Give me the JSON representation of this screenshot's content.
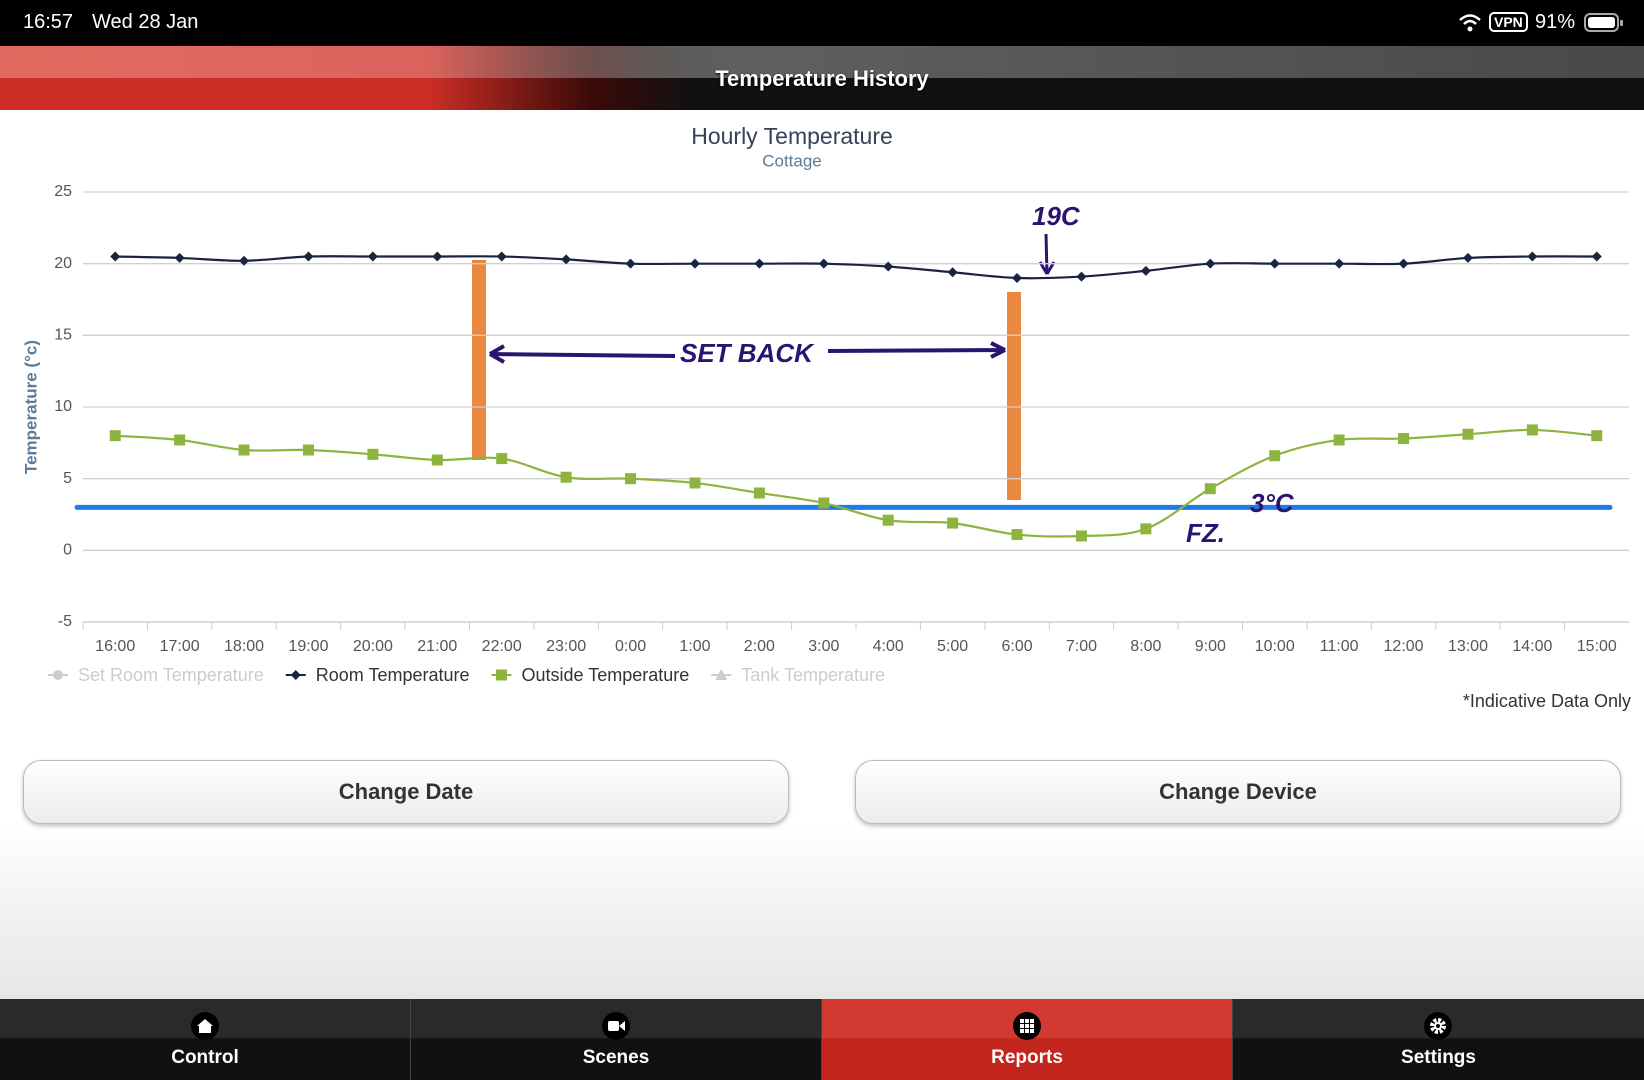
{
  "status_bar": {
    "time": "16:57",
    "date": "Wed 28 Jan",
    "vpn": "VPN",
    "battery": "91%"
  },
  "header": {
    "title": "Temperature History"
  },
  "chart_data": {
    "type": "line",
    "title": "Hourly Temperature",
    "subtitle": "Cottage",
    "y_label": "Temperature (°c)",
    "categories": [
      "16:00",
      "17:00",
      "18:00",
      "19:00",
      "20:00",
      "21:00",
      "22:00",
      "23:00",
      "0:00",
      "1:00",
      "2:00",
      "3:00",
      "4:00",
      "5:00",
      "6:00",
      "7:00",
      "8:00",
      "9:00",
      "10:00",
      "11:00",
      "12:00",
      "13:00",
      "14:00",
      "15:00"
    ],
    "ylim": [
      -5,
      25
    ],
    "yticks": [
      -5,
      0,
      5,
      10,
      15,
      20,
      25
    ],
    "grid": true,
    "series": [
      {
        "name": "Set Room Temperature",
        "marker": "circle",
        "visible": false,
        "values": [
          null,
          null,
          null,
          null,
          null,
          null,
          null,
          null,
          null,
          null,
          null,
          null,
          null,
          null,
          null,
          null,
          null,
          null,
          null,
          null,
          null,
          null,
          null,
          null
        ]
      },
      {
        "name": "Room Temperature",
        "color": "#1a2340",
        "marker": "diamond",
        "visible": true,
        "values": [
          20.5,
          20.4,
          20.2,
          20.5,
          20.5,
          20.5,
          20.5,
          20.3,
          20.0,
          20.0,
          20.0,
          20.0,
          19.8,
          19.4,
          19.0,
          19.1,
          19.5,
          20.0,
          20.0,
          20.0,
          20.0,
          20.4,
          20.5,
          20.5
        ]
      },
      {
        "name": "Outside Temperature",
        "color": "#8db43e",
        "marker": "square",
        "visible": true,
        "values": [
          8.0,
          7.7,
          7.0,
          7.0,
          6.7,
          6.3,
          6.4,
          5.1,
          5.0,
          4.7,
          4.0,
          3.3,
          2.1,
          1.9,
          1.1,
          1.0,
          1.5,
          4.3,
          6.6,
          7.7,
          7.8,
          8.1,
          8.4,
          8.0
        ]
      },
      {
        "name": "Tank Temperature",
        "marker": "triangle",
        "visible": false,
        "values": [
          null,
          null,
          null,
          null,
          null,
          null,
          null,
          null,
          null,
          null,
          null,
          null,
          null,
          null,
          null,
          null,
          null,
          null,
          null,
          null,
          null,
          null,
          null,
          null
        ]
      }
    ],
    "reference_line": {
      "value": 3,
      "label": "3°C",
      "color": "#1e7be8"
    },
    "annotations": [
      "19C",
      "SET BACK",
      "FZ."
    ],
    "footnote": "*Indicative Data Only"
  },
  "buttons": [
    "Change Date",
    "Change Device"
  ],
  "tabs": [
    "Control",
    "Scenes",
    "Reports",
    "Settings"
  ]
}
